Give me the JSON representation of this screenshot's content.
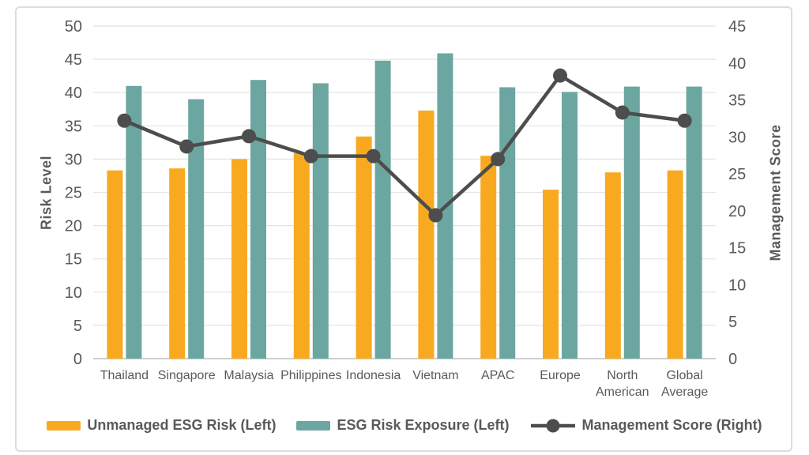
{
  "chart_data": {
    "type": "combo-bar-line",
    "categories": [
      "Thailand",
      "Singapore",
      "Malaysia",
      "Philippines",
      "Indonesia",
      "Vietnam",
      "APAC",
      "Europe",
      "North American",
      "Global Average"
    ],
    "series": [
      {
        "name": "Unmanaged ESG Risk (Left)",
        "type": "bar",
        "axis": "left",
        "color": "#F9A91F",
        "values": [
          28.3,
          28.6,
          30.0,
          30.9,
          33.4,
          37.3,
          30.5,
          25.4,
          28.0,
          28.3
        ]
      },
      {
        "name": "ESG Risk Exposure (Left)",
        "type": "bar",
        "axis": "left",
        "color": "#6BA7A0",
        "values": [
          41.0,
          39.0,
          41.9,
          41.4,
          44.8,
          45.9,
          40.8,
          40.1,
          40.9,
          40.9
        ]
      },
      {
        "name": "Management Score (Right)",
        "type": "line",
        "axis": "right",
        "color": "#4D4D4D",
        "values": [
          32.2,
          28.7,
          30.1,
          27.4,
          27.4,
          19.4,
          27.0,
          38.3,
          33.3,
          32.2
        ]
      }
    ],
    "left_axis": {
      "title": "Risk Level",
      "min": 0,
      "max": 50,
      "step": 5,
      "ticks": [
        0,
        5,
        10,
        15,
        20,
        25,
        30,
        35,
        40,
        45,
        50
      ]
    },
    "right_axis": {
      "title": "Management Score",
      "min": 0,
      "max": 45,
      "step": 5,
      "ticks": [
        0,
        5,
        10,
        15,
        20,
        25,
        30,
        35,
        40,
        45
      ]
    },
    "grid": true,
    "legend_position": "bottom"
  },
  "colors": {
    "grid": "#E4E4E4",
    "axis_line": "#BFBFBF",
    "text": "#595959",
    "frame_border": "#DCDCDC",
    "background": "#FFFFFF"
  }
}
